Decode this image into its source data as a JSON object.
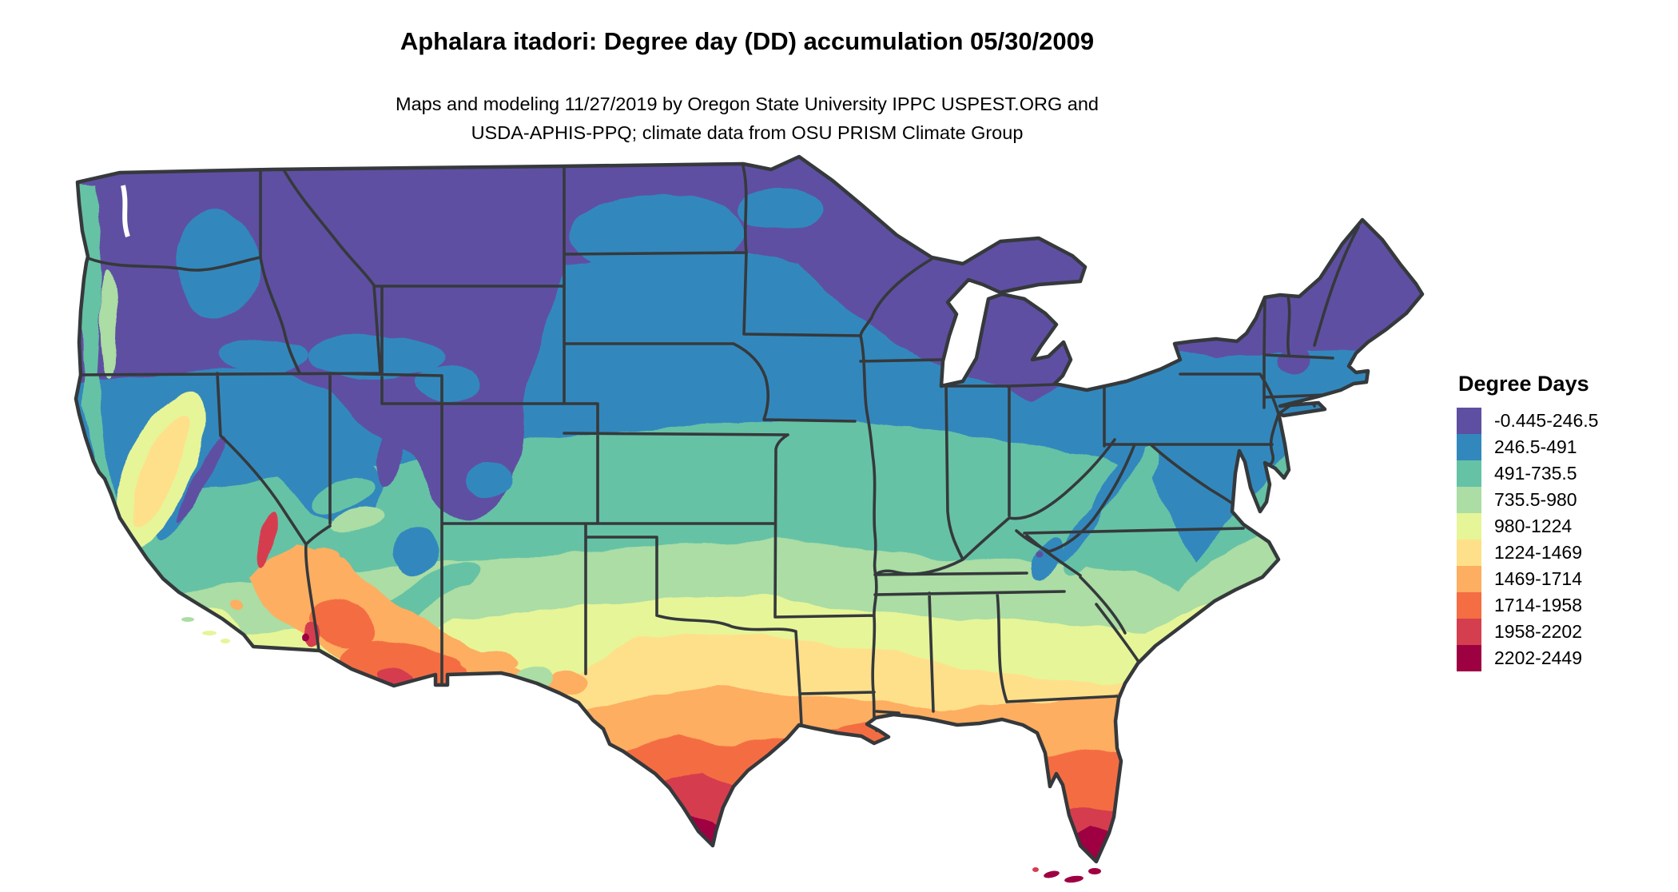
{
  "page": {
    "background": "#ffffff"
  },
  "header": {
    "title": "Aphalara itadori: Degree day (DD) accumulation 05/30/2009",
    "subtitle_line1": "Maps and modeling 11/27/2019 by Oregon State University IPPC USPEST.ORG and",
    "subtitle_line2": "USDA-APHIS-PPQ; climate data from OSU PRISM Climate Group"
  },
  "map": {
    "name": "Contiguous United States degree-day accumulation map",
    "state_border_color": "#35393c",
    "water_color": "#ffffff"
  },
  "legend": {
    "title": "Degree Days",
    "items": [
      {
        "label": "-0.445-246.5",
        "color": "#5e4fa2"
      },
      {
        "label": "246.5-491",
        "color": "#3288bd"
      },
      {
        "label": "491-735.5",
        "color": "#66c2a5"
      },
      {
        "label": "735.5-980",
        "color": "#abdda4"
      },
      {
        "label": "980-1224",
        "color": "#e6f598"
      },
      {
        "label": "1224-1469",
        "color": "#fee08b"
      },
      {
        "label": "1469-1714",
        "color": "#fdae61"
      },
      {
        "label": "1714-1958",
        "color": "#f46d43"
      },
      {
        "label": "1958-2202",
        "color": "#d53e4f"
      },
      {
        "label": "2202-2449",
        "color": "#9e0142"
      }
    ]
  }
}
